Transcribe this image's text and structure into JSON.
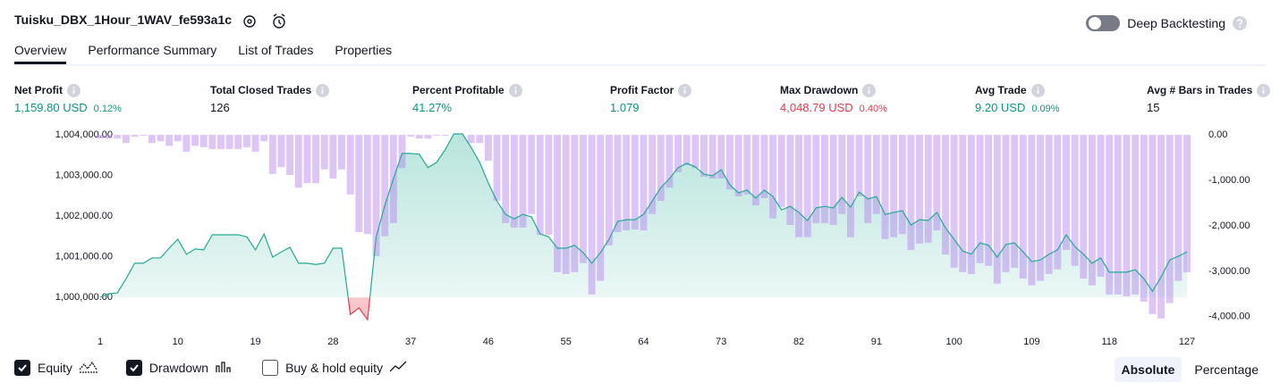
{
  "header": {
    "title": "Tuisku_DBX_1Hour_1WAV_fe593a1c",
    "deep_backtesting": "Deep Backtesting"
  },
  "tabs": [
    "Overview",
    "Performance Summary",
    "List of Trades",
    "Properties"
  ],
  "metrics": [
    {
      "label": "Net Profit",
      "value": "1,159.80 USD",
      "percent": "0.12%",
      "color": "#089981"
    },
    {
      "label": "Total Closed Trades",
      "value": "126",
      "color": "#131722"
    },
    {
      "label": "Percent Profitable",
      "value": "41.27%",
      "color": "#089981"
    },
    {
      "label": "Profit Factor",
      "value": "1.079",
      "color": "#089981"
    },
    {
      "label": "Max Drawdown",
      "value": "4,048.79 USD",
      "percent": "0.40%",
      "color": "#f23645"
    },
    {
      "label": "Avg Trade",
      "value": "9.20 USD",
      "percent": "0.09%",
      "color": "#089981"
    },
    {
      "label": "Avg # Bars in Trades",
      "value": "15",
      "color": "#131722"
    }
  ],
  "chart_data": {
    "type": "equity",
    "x": [
      1,
      2,
      3,
      4,
      5,
      6,
      7,
      8,
      9,
      10,
      11,
      12,
      13,
      14,
      15,
      16,
      17,
      18,
      19,
      20,
      21,
      22,
      23,
      24,
      25,
      26,
      27,
      28,
      29,
      30,
      31,
      32,
      33,
      34,
      35,
      36,
      37,
      38,
      39,
      40,
      41,
      42,
      43,
      44,
      45,
      46,
      47,
      48,
      49,
      50,
      51,
      52,
      53,
      54,
      55,
      56,
      57,
      58,
      59,
      60,
      61,
      62,
      63,
      64,
      65,
      66,
      67,
      68,
      69,
      70,
      71,
      72,
      73,
      74,
      75,
      76,
      77,
      78,
      79,
      80,
      81,
      82,
      83,
      84,
      85,
      86,
      87,
      88,
      89,
      90,
      91,
      92,
      93,
      94,
      95,
      96,
      97,
      98,
      99,
      100,
      101,
      102,
      103,
      104,
      105,
      106,
      107,
      108,
      109,
      110,
      111,
      112,
      113,
      114,
      115,
      116,
      117,
      118,
      119,
      120,
      121,
      122,
      123,
      124,
      125,
      126,
      127
    ],
    "xlim": [
      1,
      127
    ],
    "xticks": [
      1,
      10,
      19,
      28,
      37,
      46,
      55,
      64,
      73,
      82,
      91,
      100,
      109,
      118,
      127
    ],
    "ylim": [
      999300,
      1004130
    ],
    "yticks": [
      {
        "value": 1000000,
        "label": "1,000,000.00"
      },
      {
        "value": 1001000,
        "label": "1,001,000.00"
      },
      {
        "value": 1002000,
        "label": "1,002,000.00"
      },
      {
        "value": 1003000,
        "label": "1,003,000.00"
      },
      {
        "value": 1004000,
        "label": "1,004,000.00"
      }
    ],
    "y2lim": [
      -4200,
      120
    ],
    "y2ticks": [
      {
        "value": 0,
        "label": "0.00"
      },
      {
        "value": -1000,
        "label": "-1,000.00"
      },
      {
        "value": -2000,
        "label": "-2,000.00"
      },
      {
        "value": -3000,
        "label": "-3,000.00"
      },
      {
        "value": -4000,
        "label": "-4,000.00"
      }
    ],
    "series": [
      {
        "name": "Equity",
        "color": "#22ab94",
        "negative_color": "#f23645",
        "visible": true,
        "values": [
          1000000,
          1000090,
          1000110,
          1000460,
          1000840,
          1000840,
          1000970,
          1000970,
          1001210,
          1001430,
          1001060,
          1001190,
          1001170,
          1001540,
          1001540,
          1001540,
          1001540,
          1001490,
          1001170,
          1001560,
          1000990,
          1001120,
          1001230,
          1000840,
          1000840,
          1000810,
          1000840,
          1001210,
          1001210,
          999580,
          999740,
          999450,
          1001490,
          1002260,
          1002920,
          1003540,
          1003540,
          1003520,
          1003190,
          1003320,
          1003630,
          1004020,
          1004020,
          1003690,
          1003320,
          1002810,
          1002370,
          1002040,
          1001930,
          1002040,
          1001980,
          1001560,
          1001490,
          1001210,
          1001210,
          1001280,
          1001100,
          1000840,
          1001100,
          1001430,
          1001870,
          1001910,
          1001910,
          1002040,
          1002370,
          1002700,
          1002920,
          1003190,
          1003300,
          1003210,
          1003030,
          1002990,
          1003140,
          1002770,
          1002570,
          1002640,
          1002440,
          1002640,
          1002480,
          1002150,
          1002240,
          1002090,
          1001890,
          1002200,
          1002240,
          1002200,
          1002460,
          1002220,
          1002590,
          1002420,
          1002480,
          1002040,
          1002090,
          1002130,
          1001780,
          1001910,
          1001890,
          1002090,
          1001710,
          1001430,
          1001140,
          1001060,
          1001340,
          1001280,
          1000990,
          1001300,
          1001340,
          1001120,
          1000880,
          1000920,
          1001060,
          1001170,
          1001540,
          1001250,
          1001060,
          1000840,
          1000970,
          1000620,
          1000620,
          1000620,
          1000680,
          1000460,
          1000150,
          1000500,
          1000920,
          1001010,
          1001120
        ]
      },
      {
        "name": "Drawdown",
        "color": "#b37ff0",
        "axis": "y2",
        "visible": true,
        "values": [
          -80,
          -80,
          -80,
          -180,
          -40,
          -20,
          -180,
          -140,
          -240,
          -140,
          -370,
          -240,
          -270,
          -310,
          -310,
          -310,
          -310,
          -270,
          -370,
          -140,
          -860,
          -710,
          -880,
          -1160,
          -1060,
          -1060,
          -760,
          -960,
          -760,
          -1310,
          -2140,
          -2180,
          -2670,
          -2230,
          -1940,
          -730,
          -40,
          -80,
          -80,
          -20,
          -20,
          0,
          0,
          -180,
          -180,
          -570,
          -1450,
          -1940,
          -2040,
          -2040,
          -1740,
          -2200,
          -2200,
          -3020,
          -3060,
          -3020,
          -2820,
          -3510,
          -3210,
          -2430,
          -2140,
          -2100,
          -2080,
          -2100,
          -1740,
          -1450,
          -1160,
          -820,
          -670,
          -730,
          -920,
          -960,
          -960,
          -1200,
          -1350,
          -1310,
          -1550,
          -1390,
          -1840,
          -1590,
          -1980,
          -2250,
          -2250,
          -1940,
          -1940,
          -1980,
          -1740,
          -2250,
          -1350,
          -1940,
          -1740,
          -2290,
          -2250,
          -2180,
          -2530,
          -2390,
          -2370,
          -2100,
          -2630,
          -2920,
          -3020,
          -3060,
          -2820,
          -2880,
          -3270,
          -3020,
          -2920,
          -3160,
          -3310,
          -3210,
          -3060,
          -2960,
          -2530,
          -2880,
          -3160,
          -3310,
          -3120,
          -3510,
          -3510,
          -3550,
          -3510,
          -3670,
          -3940,
          -4040,
          -3700,
          -3210,
          -3020
        ]
      }
    ]
  },
  "buy_hold": {
    "label": "Buy & hold equity",
    "visible": false
  },
  "scale_buttons": [
    "Absolute",
    "Percentage"
  ]
}
